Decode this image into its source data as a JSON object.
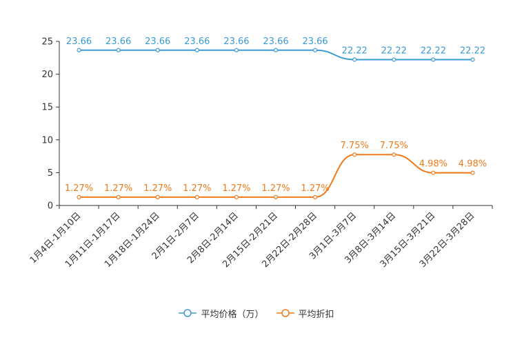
{
  "chart_data": {
    "type": "line",
    "categories": [
      "1月4日-1月10日",
      "1月11日-1月17日",
      "1月18日-1月24日",
      "2月1日-2月7日",
      "2月8日-2月14日",
      "2月15日-2月21日",
      "2月22日-2月28日",
      "3月1日-3月7日",
      "3月8日-3月14日",
      "3月15日-3月21日",
      "3月22日-3月28日"
    ],
    "ylim": [
      0,
      25
    ],
    "yticks": [
      0,
      5,
      10,
      15,
      20,
      25
    ],
    "series": [
      {
        "name": "平均价格（万）",
        "color": "#3a9ad4",
        "values": [
          23.66,
          23.66,
          23.66,
          23.66,
          23.66,
          23.66,
          23.66,
          22.22,
          22.22,
          22.22,
          22.22
        ],
        "labels": [
          "23.66",
          "23.66",
          "23.66",
          "23.66",
          "23.66",
          "23.66",
          "23.66",
          "22.22",
          "22.22",
          "22.22",
          "22.22"
        ]
      },
      {
        "name": "平均折扣",
        "color": "#f07a1a",
        "values": [
          1.27,
          1.27,
          1.27,
          1.27,
          1.27,
          1.27,
          1.27,
          7.75,
          7.75,
          4.98,
          4.98
        ],
        "labels": [
          "1.27%",
          "1.27%",
          "1.27%",
          "1.27%",
          "1.27%",
          "1.27%",
          "1.27%",
          "7.75%",
          "7.75%",
          "4.98%",
          "4.98%"
        ]
      }
    ],
    "legend_position": "bottom-center"
  }
}
